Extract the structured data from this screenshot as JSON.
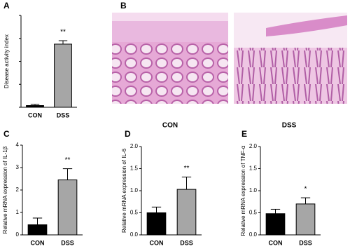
{
  "chart_data": [
    {
      "type": "bar",
      "panel": "A",
      "ylabel": "Disease activity index",
      "categories": [
        "CON",
        "DSS"
      ],
      "values": [
        0.15,
        5.5
      ],
      "errors": [
        0.1,
        0.3
      ],
      "colors": [
        "#000000",
        "#a6a6a6"
      ],
      "annotation": "**",
      "ylim": [
        0,
        8
      ],
      "yticks": [
        0,
        2,
        4,
        6,
        8
      ],
      "tick_labels": false
    },
    {
      "type": "bar",
      "panel": "C",
      "ylabel": "Relative mRNA expression of IL-1β",
      "categories": [
        "CON",
        "DSS"
      ],
      "values": [
        0.45,
        2.45
      ],
      "errors": [
        0.3,
        0.5
      ],
      "colors": [
        "#000000",
        "#a6a6a6"
      ],
      "annotation": "**",
      "ylim": [
        0,
        4
      ],
      "yticks": [
        0,
        1,
        2,
        3,
        4
      ],
      "tick_labels": true
    },
    {
      "type": "bar",
      "panel": "D",
      "ylabel": "Relative mRNA expression of IL-6",
      "categories": [
        "CON",
        "DSS"
      ],
      "values": [
        0.5,
        1.03
      ],
      "errors": [
        0.13,
        0.28
      ],
      "colors": [
        "#000000",
        "#a6a6a6"
      ],
      "annotation": "**",
      "ylim": [
        0,
        2
      ],
      "yticks": [
        {
          "value": 0,
          "label": "0.0"
        },
        {
          "value": 0.5,
          "label": "0.5"
        },
        {
          "value": 1,
          "label": "1.0"
        },
        {
          "value": 1.5,
          "label": "1.5"
        },
        {
          "value": 2,
          "label": "2.0"
        }
      ],
      "tick_labels": true
    },
    {
      "type": "bar",
      "panel": "E",
      "ylabel": "Relative mRNA expression of TNF-α",
      "categories": [
        "CON",
        "DSS"
      ],
      "values": [
        0.48,
        0.7
      ],
      "errors": [
        0.1,
        0.14
      ],
      "colors": [
        "#000000",
        "#a6a6a6"
      ],
      "annotation": "*",
      "ylim": [
        0,
        2
      ],
      "yticks": [
        {
          "value": 0,
          "label": "0.0"
        },
        {
          "value": 0.5,
          "label": "0.5"
        },
        {
          "value": 1,
          "label": "1.0"
        },
        {
          "value": 1.5,
          "label": "1.5"
        },
        {
          "value": 2,
          "label": "2.0"
        }
      ],
      "tick_labels": true
    }
  ],
  "images": {
    "panel": "B",
    "captions": [
      "CON",
      "DSS"
    ]
  }
}
